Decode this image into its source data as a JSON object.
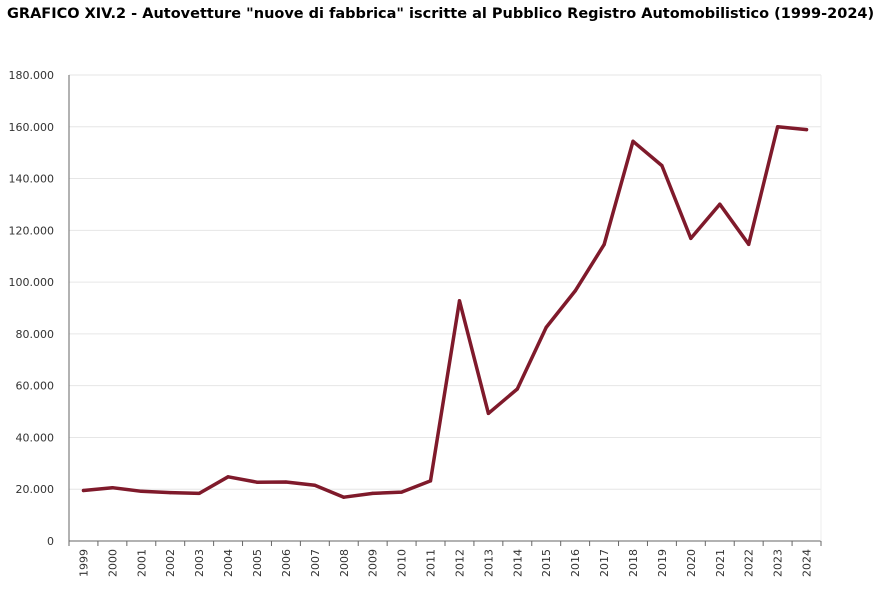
{
  "chart_data": {
    "type": "line",
    "title": "GRAFICO XIV.2 - Autovetture \"nuove di fabbrica\" iscritte al Pubblico Registro Automobilistico (1999-2024)",
    "xlabel": "",
    "ylabel": "",
    "ylim": [
      0,
      180000
    ],
    "yticks": [
      0,
      20000,
      40000,
      60000,
      80000,
      100000,
      120000,
      140000,
      160000,
      180000
    ],
    "ytick_labels": [
      "0",
      "20.000",
      "40.000",
      "60.000",
      "80.000",
      "100.000",
      "120.000",
      "140.000",
      "160.000",
      "180.000"
    ],
    "grid": true,
    "legend": "none",
    "line_color": "#7f1a2b",
    "categories": [
      "1999",
      "2000",
      "2001",
      "2002",
      "2003",
      "2004",
      "2005",
      "2006",
      "2007",
      "2008",
      "2009",
      "2010",
      "2011",
      "2012",
      "2013",
      "2014",
      "2015",
      "2016",
      "2017",
      "2018",
      "2019",
      "2020",
      "2021",
      "2022",
      "2023",
      "2024"
    ],
    "series": [
      {
        "values": [
          19500,
          20600,
          19200,
          18700,
          18400,
          24800,
          22700,
          22800,
          21500,
          16900,
          18400,
          18900,
          23200,
          92800,
          49300,
          58700,
          82500,
          96600,
          114500,
          154400,
          145000,
          116900,
          130100,
          114600,
          160000,
          158900
        ]
      }
    ]
  }
}
